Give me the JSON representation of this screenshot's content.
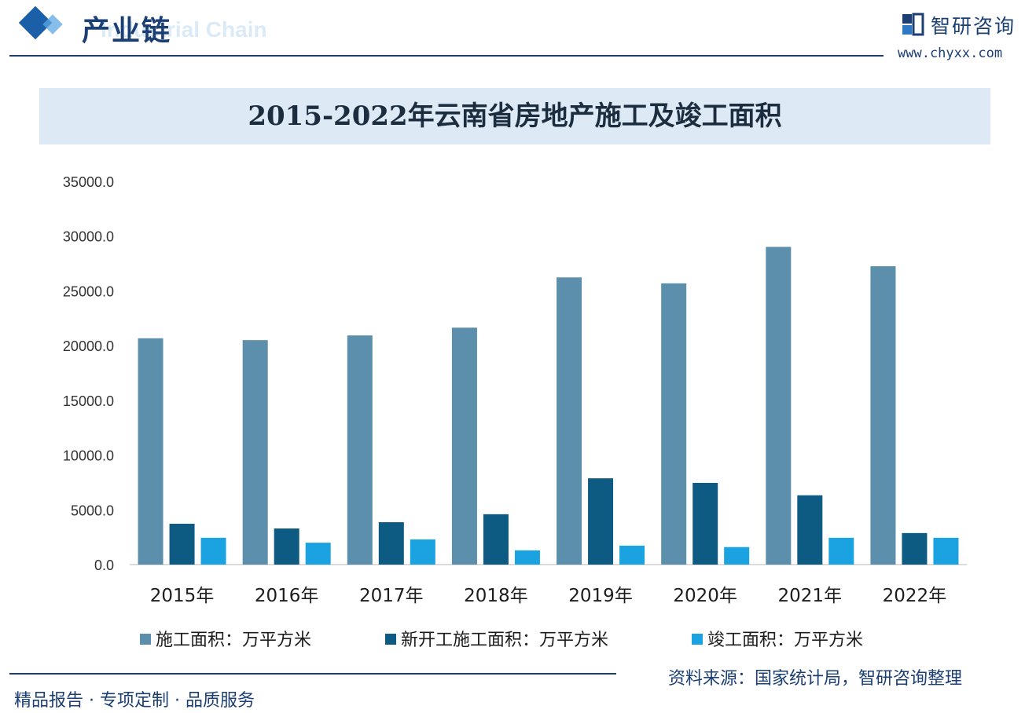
{
  "header": {
    "section_title": "产业链",
    "section_subtitle": "Industrial Chain",
    "brand_name": "智研咨询",
    "brand_url": "www.chyxx.com"
  },
  "colors": {
    "primary_dark": "#1b3f73",
    "series": [
      "#5b8fab",
      "#0d5a83",
      "#1aa3e0"
    ]
  },
  "chart_data": {
    "type": "bar",
    "title": "2015-2022年云南省房地产施工及竣工面积",
    "categories": [
      "2015年",
      "2016年",
      "2017年",
      "2018年",
      "2019年",
      "2020年",
      "2021年",
      "2022年"
    ],
    "series": [
      {
        "name": "施工面积：万平方米",
        "values": [
          20670,
          20500,
          20930,
          21640,
          26230,
          25690,
          29020,
          27250
        ]
      },
      {
        "name": "新开工施工面积：万平方米",
        "values": [
          3730,
          3300,
          3870,
          4600,
          7880,
          7460,
          6330,
          2880
        ]
      },
      {
        "name": "竣工面积：万平方米",
        "values": [
          2450,
          2000,
          2300,
          1300,
          1730,
          1600,
          2450,
          2450
        ]
      }
    ],
    "yticks": [
      "0.0",
      "5000.0",
      "10000.0",
      "15000.0",
      "20000.0",
      "25000.0",
      "30000.0",
      "35000.0"
    ],
    "ylim": [
      0,
      35000
    ],
    "grid": false,
    "legend_position": "bottom"
  },
  "footer": {
    "slogan": "精品报告 · 专项定制 · 品质服务",
    "source": "资料来源：国家统计局，智研咨询整理"
  }
}
